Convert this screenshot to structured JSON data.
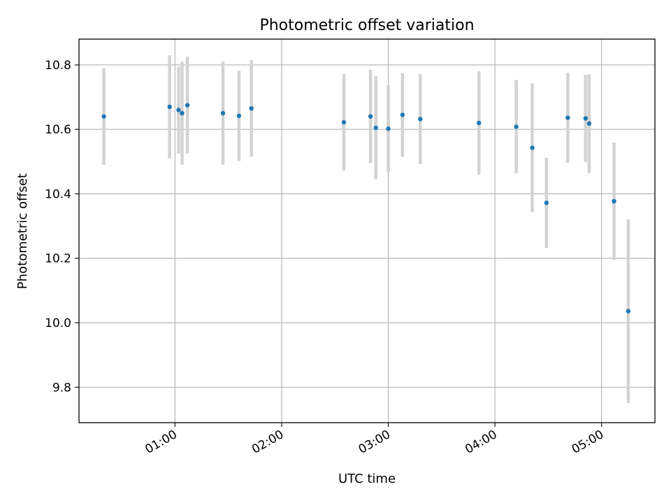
{
  "chart_data": {
    "type": "scatter",
    "title": "Photometric offset variation",
    "xlabel": "UTC time",
    "ylabel": "Photometric offset",
    "xlim": [
      "00:06",
      "05:30"
    ],
    "ylim": [
      9.69,
      10.88
    ],
    "x_ticks": [
      "01:00",
      "02:00",
      "03:00",
      "04:00",
      "05:00"
    ],
    "y_ticks": [
      9.8,
      10.0,
      10.2,
      10.4,
      10.6,
      10.8
    ],
    "grid": true,
    "marker_color": "#1f77b4",
    "errorbar_color": "#d3d3d3",
    "points": [
      {
        "x": "00:20",
        "y": 10.64,
        "err": 0.15
      },
      {
        "x": "00:57",
        "y": 10.67,
        "err": 0.16
      },
      {
        "x": "01:02",
        "y": 10.66,
        "err": 0.135
      },
      {
        "x": "01:04",
        "y": 10.65,
        "err": 0.16
      },
      {
        "x": "01:07",
        "y": 10.675,
        "err": 0.15
      },
      {
        "x": "01:27",
        "y": 10.65,
        "err": 0.16
      },
      {
        "x": "01:36",
        "y": 10.642,
        "err": 0.14
      },
      {
        "x": "01:43",
        "y": 10.665,
        "err": 0.15
      },
      {
        "x": "02:35",
        "y": 10.622,
        "err": 0.15
      },
      {
        "x": "02:50",
        "y": 10.64,
        "err": 0.145
      },
      {
        "x": "02:53",
        "y": 10.605,
        "err": 0.16
      },
      {
        "x": "03:00",
        "y": 10.602,
        "err": 0.135
      },
      {
        "x": "03:08",
        "y": 10.645,
        "err": 0.13
      },
      {
        "x": "03:18",
        "y": 10.632,
        "err": 0.14
      },
      {
        "x": "03:51",
        "y": 10.62,
        "err": 0.16
      },
      {
        "x": "04:12",
        "y": 10.608,
        "err": 0.145
      },
      {
        "x": "04:21",
        "y": 10.543,
        "err": 0.2
      },
      {
        "x": "04:29",
        "y": 10.372,
        "err": 0.14
      },
      {
        "x": "04:41",
        "y": 10.636,
        "err": 0.14
      },
      {
        "x": "04:51",
        "y": 10.634,
        "err": 0.135
      },
      {
        "x": "04:53",
        "y": 10.618,
        "err": 0.153
      },
      {
        "x": "05:07",
        "y": 10.377,
        "err": 0.182
      },
      {
        "x": "05:15",
        "y": 10.036,
        "err": 0.285
      }
    ]
  }
}
